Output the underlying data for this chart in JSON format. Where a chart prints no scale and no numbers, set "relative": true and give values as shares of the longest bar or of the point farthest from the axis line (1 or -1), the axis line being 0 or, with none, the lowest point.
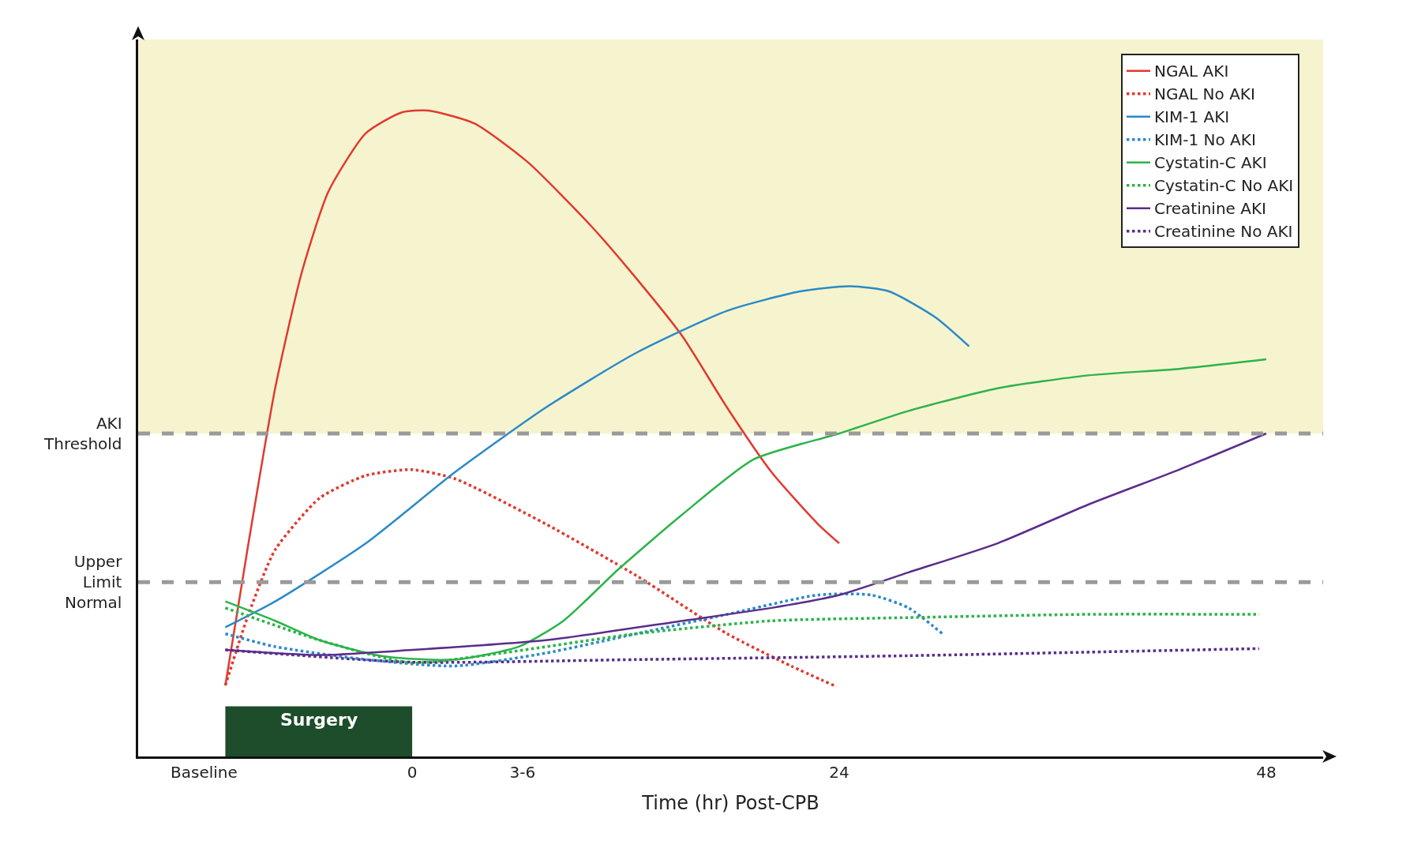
{
  "chart_data": {
    "type": "line",
    "relative": true,
    "xlabel": "Time (hr) Post-CPB",
    "xlim": [
      -15.4,
      51.2
    ],
    "xticks": [
      {
        "value": -11.7,
        "label": "Baseline"
      },
      0,
      {
        "value": 6.2,
        "label": "3-6"
      },
      24,
      48
    ],
    "ylim": [
      0,
      1.11
    ],
    "tick_labels": "x",
    "grid": false,
    "legend": "top right",
    "marker": "none",
    "series": [
      {
        "name": "NGAL AKI",
        "color": "#e03a2f",
        "line_style": "solid",
        "x": [
          -10.5,
          -9.2,
          -7.7,
          -6.2,
          -4.7,
          -2.6,
          -0.6,
          0.9,
          3.5,
          6.5,
          10.1,
          12.6,
          15.2,
          17.7,
          20.2,
          22.8,
          24
        ],
        "values": [
          0.11,
          0.33,
          0.57,
          0.75,
          0.875,
          0.965,
          0.997,
          1,
          0.98,
          0.92,
          0.82,
          0.74,
          0.65,
          0.54,
          0.44,
          0.36,
          0.33
        ]
      },
      {
        "name": "NGAL No AKI",
        "color": "#e03a2f",
        "line_style": "dotted",
        "x": [
          -10.5,
          -9.2,
          -7.7,
          -5.2,
          -2.6,
          0,
          2.4,
          7.5,
          12.6,
          17.7,
          21.3,
          23.7
        ],
        "values": [
          0.11,
          0.22,
          0.32,
          0.4,
          0.435,
          0.444,
          0.43,
          0.36,
          0.28,
          0.19,
          0.14,
          0.11
        ]
      },
      {
        "name": "KIM-1 AKI",
        "color": "#2a8ac8",
        "line_style": "solid",
        "x": [
          -10.5,
          -7.7,
          -2.6,
          2.4,
          7.5,
          12.6,
          17.7,
          21.8,
          24.6,
          26.8,
          29.4,
          31.3
        ],
        "values": [
          0.2,
          0.24,
          0.33,
          0.44,
          0.54,
          0.625,
          0.69,
          0.72,
          0.728,
          0.72,
          0.68,
          0.635
        ]
      },
      {
        "name": "KIM-1 No AKI",
        "color": "#2a8ac8",
        "line_style": "dotted",
        "x": [
          -10.5,
          -7.7,
          -2.6,
          2.4,
          7.5,
          12.6,
          17.7,
          22.8,
          25.8,
          27.9,
          29.8
        ],
        "values": [
          0.19,
          0.17,
          0.15,
          0.14,
          0.16,
          0.19,
          0.22,
          0.25,
          0.25,
          0.23,
          0.19
        ]
      },
      {
        "name": "Cystatin-C AKI",
        "color": "#2db34a",
        "line_style": "solid",
        "x": [
          -10.5,
          -7.7,
          -5.2,
          -1.6,
          2.4,
          6,
          8.5,
          11.6,
          15.2,
          19.2,
          24,
          27.9,
          32.9,
          38,
          43.1,
          48
        ],
        "values": [
          0.24,
          0.21,
          0.18,
          0.155,
          0.15,
          0.17,
          0.21,
          0.29,
          0.375,
          0.46,
          0.5,
          0.535,
          0.57,
          0.59,
          0.6,
          0.615
        ]
      },
      {
        "name": "Cystatin-C No AKI",
        "color": "#2db34a",
        "line_style": "dotted",
        "x": [
          -10.5,
          -5.2,
          -0.1,
          5,
          12.6,
          20.2,
          27.9,
          38,
          47.6
        ],
        "values": [
          0.23,
          0.18,
          0.145,
          0.16,
          0.19,
          0.21,
          0.215,
          0.22,
          0.22
        ]
      },
      {
        "name": "Creatinine AKI",
        "color": "#5a2d8c",
        "line_style": "solid",
        "x": [
          -10.5,
          -5.2,
          0,
          7.5,
          15.2,
          20.2,
          24,
          27.9,
          32.9,
          38,
          43.1,
          48
        ],
        "values": [
          0.165,
          0.157,
          0.165,
          0.18,
          0.21,
          0.23,
          0.25,
          0.285,
          0.33,
          0.39,
          0.444,
          0.5
        ]
      },
      {
        "name": "Creatinine No AKI",
        "color": "#5a2d8c",
        "line_style": "dotted",
        "x": [
          -10.5,
          -0.1,
          12.6,
          27.9,
          47.6
        ],
        "values": [
          0.165,
          0.146,
          0.15,
          0.156,
          0.167
        ]
      }
    ],
    "ref_lines": [
      {
        "axis": "y",
        "value": 0.5,
        "label": "AKI Threshold",
        "color": "#9a9a9a",
        "line_style": "dashed"
      },
      {
        "axis": "y",
        "value": 0.27,
        "label": "Upper Limit Normal",
        "color": "#9a9a9a",
        "line_style": "dashed"
      }
    ],
    "bands": [
      {
        "axis": "y",
        "from": 0.5,
        "to": 1.11,
        "color": "#f6f4cf"
      },
      {
        "axis": "x",
        "from": -10.5,
        "to": 0,
        "label": "Surgery",
        "color": "#1d4d2b"
      }
    ]
  }
}
